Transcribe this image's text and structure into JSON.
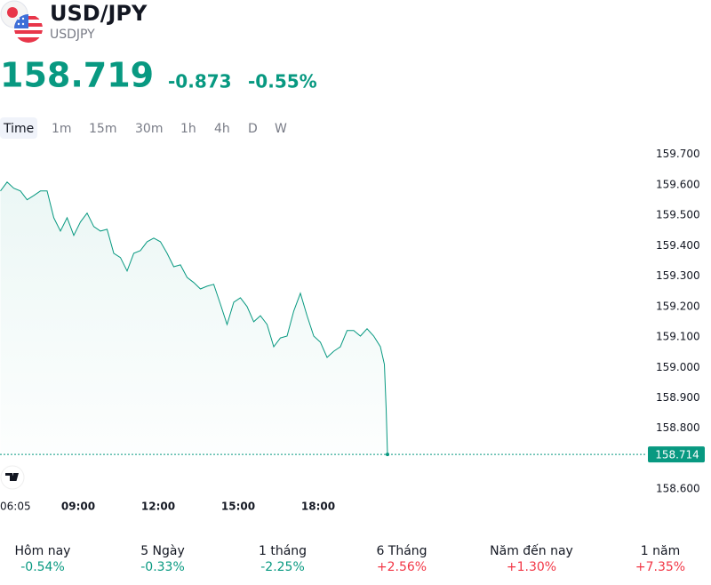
{
  "header": {
    "symbol": "USD/JPY",
    "ticker": "USDJPY",
    "price": "158.719",
    "change": "-0.873",
    "change_percent": "-0.55%"
  },
  "timeframes": [
    "Time",
    "1m",
    "15m",
    "30m",
    "1h",
    "4h",
    "D",
    "W"
  ],
  "selected_timeframe": "Time",
  "chart_data": {
    "type": "line",
    "color": "#089981",
    "x": [
      "06:05",
      "06:20",
      "06:35",
      "06:50",
      "07:05",
      "07:20",
      "07:35",
      "07:50",
      "08:05",
      "08:20",
      "08:35",
      "08:50",
      "09:05",
      "09:20",
      "09:35",
      "09:50",
      "10:05",
      "10:20",
      "10:35",
      "10:50",
      "11:05",
      "11:20",
      "11:35",
      "11:50",
      "12:05",
      "12:20",
      "12:35",
      "12:50",
      "13:05",
      "13:20",
      "13:35",
      "13:50",
      "14:05",
      "14:20",
      "14:35",
      "14:50",
      "15:05",
      "15:20",
      "15:35",
      "15:50",
      "16:05",
      "16:20",
      "16:35",
      "16:50",
      "17:05",
      "17:20",
      "17:35",
      "17:50",
      "18:05",
      "18:20",
      "18:35",
      "18:50",
      "19:05",
      "19:20",
      "19:35",
      "19:50",
      "20:05",
      "20:20",
      "20:29",
      "20:33",
      "20:36"
    ],
    "values": [
      159.58,
      159.609,
      159.589,
      159.58,
      159.551,
      159.565,
      159.58,
      159.58,
      159.492,
      159.448,
      159.492,
      159.434,
      159.478,
      159.507,
      159.463,
      159.448,
      159.454,
      159.375,
      159.361,
      159.317,
      159.375,
      159.384,
      159.413,
      159.425,
      159.413,
      159.375,
      159.331,
      159.337,
      159.296,
      159.279,
      159.258,
      159.267,
      159.273,
      159.208,
      159.141,
      159.214,
      159.229,
      159.2,
      159.15,
      159.17,
      159.141,
      159.068,
      159.097,
      159.103,
      159.185,
      159.244,
      159.17,
      159.103,
      159.083,
      159.033,
      159.053,
      159.068,
      159.121,
      159.121,
      159.103,
      159.127,
      159.103,
      159.068,
      159.01,
      158.863,
      158.714
    ],
    "xticks": [
      "06:05",
      "09:00",
      "12:00",
      "15:00",
      "18:00"
    ],
    "ylim": [
      158.58,
      159.74
    ],
    "yticks": [
      {
        "value": 158.6,
        "label": "158.600"
      },
      {
        "value": 158.8,
        "label": "158.800"
      },
      {
        "value": 158.9,
        "label": "158.900"
      },
      {
        "value": 159.0,
        "label": "159.000"
      },
      {
        "value": 159.1,
        "label": "159.100"
      },
      {
        "value": 159.2,
        "label": "159.200"
      },
      {
        "value": 159.3,
        "label": "159.300"
      },
      {
        "value": 159.4,
        "label": "159.400"
      },
      {
        "value": 159.5,
        "label": "159.500"
      },
      {
        "value": 159.6,
        "label": "159.600"
      },
      {
        "value": 159.7,
        "label": "159.700"
      }
    ],
    "last_value": 158.714
  },
  "performance": [
    {
      "label": "Hôm nay",
      "value": "-0.54%"
    },
    {
      "label": "5 Ngày",
      "value": "-0.33%"
    },
    {
      "label": "1 tháng",
      "value": "-2.25%"
    },
    {
      "label": "6 Tháng",
      "value": "+2.56%"
    },
    {
      "label": "Năm đến nay",
      "value": "+1.30%"
    },
    {
      "label": "1 năm",
      "value": "+7.35%"
    }
  ]
}
